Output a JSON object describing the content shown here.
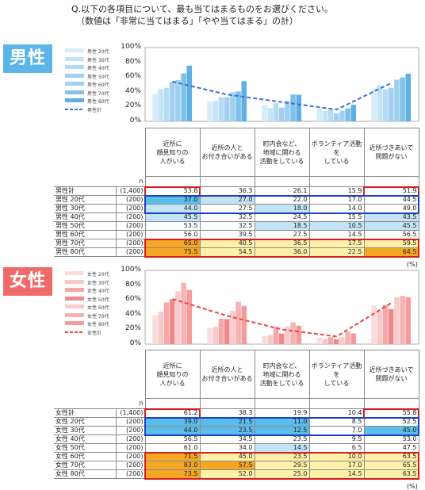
{
  "question": {
    "line1": "Q.以下の各項目について、最も当てはまるものをお選びください。",
    "line2": "（数値は「非常に当てはまる」「やや当てはまる」の計）"
  },
  "columns": [
    "近所に\n顔見知りの\n人がいる",
    "近所の人と\nお付き合いがある",
    "町内会など、\n地域に関わる\n活動をしている",
    "ボランティア活動を\nしている",
    "近所づきあいで\n問題がない"
  ],
  "n_header": "n",
  "unit": "(%)",
  "axis_ticks": [
    "100%",
    "80%",
    "60%",
    "40%",
    "20%",
    "0%"
  ],
  "colors": {
    "male_badge": "#5bb5e8",
    "female_badge": "#f06a6a",
    "male_total_line": "#3a6fd8",
    "female_total_line": "#e84848",
    "hl_red": "#d81e1e",
    "hl_blue": "#1c3fc4",
    "cell_blue": "#5bbdea",
    "cell_lightblue": "#c3e4f6",
    "cell_orange": "#f5a623",
    "cell_yellow": "#fff2a8"
  },
  "chart_data": [
    {
      "type": "bar",
      "title": "男性",
      "categories": [
        "近所に顔見知りの人がいる",
        "近所の人とお付き合いがある",
        "町内会など、地域に関わる活動をしている",
        "ボランティア活動をしている",
        "近所づきあいで問題がない"
      ],
      "ylim": [
        0,
        100
      ],
      "series": [
        {
          "name": "男性 20代",
          "n": "(200)",
          "values": [
            37.0,
            27.0,
            22.0,
            17.0,
            44.5
          ],
          "color": "#d6ecf9"
        },
        {
          "name": "男性 30代",
          "n": "(200)",
          "values": [
            44.0,
            27.5,
            18.0,
            14.0,
            49.0
          ],
          "color": "#c4e3f6"
        },
        {
          "name": "男性 40代",
          "n": "(200)",
          "values": [
            45.5,
            32.5,
            24.5,
            15.5,
            43.5
          ],
          "color": "#b3dbf3"
        },
        {
          "name": "男性 50代",
          "n": "(200)",
          "values": [
            53.5,
            32.5,
            18.5,
            10.5,
            45.5
          ],
          "color": "#a3cdf2"
        },
        {
          "name": "男性 60代",
          "n": "(200)",
          "values": [
            56.0,
            39.5,
            27.5,
            14.5,
            56.5
          ],
          "color": "#9fd1ef"
        },
        {
          "name": "男性 70代",
          "n": "(200)",
          "values": [
            65.0,
            40.5,
            36.5,
            17.5,
            59.5
          ],
          "color": "#7fc1ea"
        },
        {
          "name": "男性 80代",
          "n": "(200)",
          "values": [
            75.5,
            54.5,
            36.0,
            22.5,
            64.5
          ],
          "color": "#5eb0e4"
        },
        {
          "name": "男性計",
          "n": "(1,400)",
          "values": [
            53.8,
            36.3,
            26.1,
            15.9,
            51.9
          ],
          "style": "dashed-line",
          "color": "#3a6fd8"
        }
      ],
      "cell_fill": {
        "0": [
          "",
          "",
          "",
          "",
          ""
        ],
        "1": [
          "blue",
          "lightblue",
          "",
          "",
          ""
        ],
        "2": [
          "lightblue",
          "",
          "lightblue",
          "",
          ""
        ],
        "3": [
          "lightblue",
          "",
          "",
          "",
          "lightblue"
        ],
        "4": [
          "",
          "",
          "lightblue",
          "lightblue",
          "lightblue"
        ],
        "5": [
          "",
          "",
          "",
          "",
          ""
        ],
        "6": [
          "orange",
          "yellow",
          "yellow",
          "yellow",
          "yellow"
        ],
        "7": [
          "orange",
          "yellow",
          "yellow",
          "yellow",
          "orange"
        ]
      }
    },
    {
      "type": "bar",
      "title": "女性",
      "categories": [
        "近所に顔見知りの人がいる",
        "近所の人とお付き合いがある",
        "町内会など、地域に関わる活動をしている",
        "ボランティア活動をしている",
        "近所づきあいで問題がない"
      ],
      "ylim": [
        0,
        100
      ],
      "series": [
        {
          "name": "女性 20代",
          "n": "(200)",
          "values": [
            39.0,
            21.5,
            11.0,
            8.5,
            52.5
          ],
          "color": "#fbdcdc"
        },
        {
          "name": "女性 30代",
          "n": "(200)",
          "values": [
            44.0,
            23.5,
            12.5,
            7.0,
            45.0
          ],
          "color": "#f9c9c9"
        },
        {
          "name": "女性 40代",
          "n": "(200)",
          "values": [
            56.5,
            34.5,
            23.5,
            9.5,
            53.0
          ],
          "color": "#f5a6a6"
        },
        {
          "name": "女性 50代",
          "n": "(200)",
          "values": [
            61.0,
            34.0,
            14.5,
            6.5,
            47.5
          ],
          "color": "#f08a8a"
        },
        {
          "name": "女性 60代",
          "n": "(200)",
          "values": [
            71.5,
            45.0,
            23.5,
            10.0,
            63.5
          ],
          "color": "#f8cccc"
        },
        {
          "name": "女性 70代",
          "n": "(200)",
          "values": [
            83.0,
            57.5,
            29.5,
            17.0,
            65.5
          ],
          "color": "#f7b3b3"
        },
        {
          "name": "女性 80代",
          "n": "(200)",
          "values": [
            73.5,
            52.0,
            25.0,
            14.5,
            63.5
          ],
          "color": "#f49c9c"
        },
        {
          "name": "女性計",
          "n": "(1,400)",
          "values": [
            61.2,
            38.3,
            19.9,
            10.4,
            55.8
          ],
          "style": "dashed-line",
          "color": "#e84848"
        }
      ],
      "cell_fill": {
        "0": [
          "",
          "",
          "",
          "",
          ""
        ],
        "1": [
          "blue",
          "blue",
          "blue",
          "",
          ""
        ],
        "2": [
          "blue",
          "blue",
          "blue",
          "",
          "blue"
        ],
        "3": [
          "",
          "",
          "",
          "",
          ""
        ],
        "4": [
          "",
          "",
          "lightblue",
          "",
          ""
        ],
        "5": [
          "orange",
          "yellow",
          "yellow",
          "yellow",
          "yellow"
        ],
        "6": [
          "orange",
          "orange",
          "yellow",
          "yellow",
          "yellow"
        ],
        "7": [
          "orange",
          "yellow",
          "yellow",
          "yellow",
          "yellow"
        ]
      }
    }
  ]
}
